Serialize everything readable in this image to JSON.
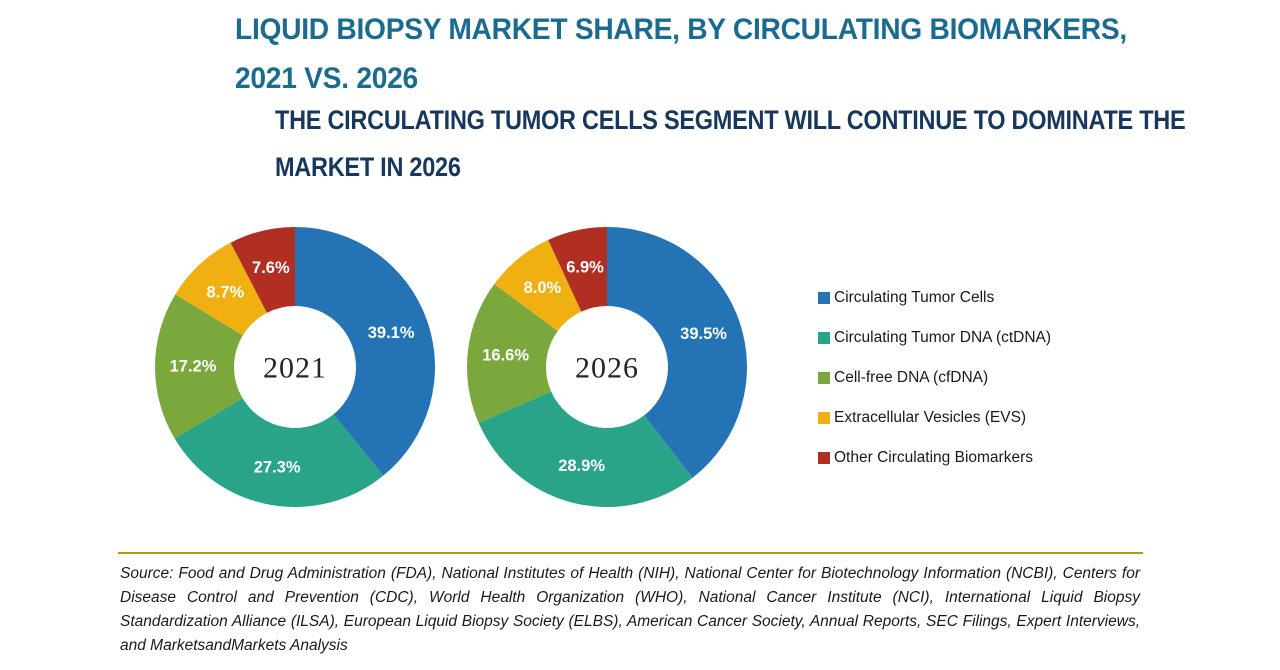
{
  "header": {
    "title_lines": [
      "LIQUID BIOPSY MARKET SHARE, BY CIRCULATING BIOMARKERS,",
      "2021 VS. 2026"
    ],
    "subtitle_lines": [
      "THE CIRCULATING TUMOR CELLS SEGMENT WILL CONTINUE TO DOMINATE THE",
      "MARKET IN 2026"
    ],
    "title_color": "#1b6b8f",
    "subtitle_color": "#17375d"
  },
  "legend": {
    "items": [
      {
        "label": "Circulating Tumor Cells",
        "color": "#2473b5"
      },
      {
        "label": "Circulating Tumor DNA (ctDNA)",
        "color": "#2aa489"
      },
      {
        "label": "Cell-free DNA (cfDNA)",
        "color": "#7aa83d"
      },
      {
        "label": "Extracellular Vesicles (EVS)",
        "color": "#f0b012"
      },
      {
        "label": "Other Circulating Biomarkers",
        "color": "#b12f22"
      }
    ]
  },
  "chart_data": [
    {
      "type": "pie",
      "donut": true,
      "center_label": "2021",
      "categories": [
        "Circulating Tumor Cells",
        "Circulating Tumor DNA (ctDNA)",
        "Cell-free DNA (cfDNA)",
        "Extracellular Vesicles (EVS)",
        "Other Circulating Biomarkers"
      ],
      "values": [
        39.1,
        27.3,
        17.2,
        8.7,
        7.6
      ],
      "labels": [
        "39.1%",
        "27.3%",
        "17.2%",
        "8.7%",
        "7.6%"
      ],
      "colors": [
        "#2473b5",
        "#2aa489",
        "#7aa83d",
        "#f0b012",
        "#b12f22"
      ],
      "start_angle_deg": 0,
      "direction": "clockwise"
    },
    {
      "type": "pie",
      "donut": true,
      "center_label": "2026",
      "categories": [
        "Circulating Tumor Cells",
        "Circulating Tumor DNA (ctDNA)",
        "Cell-free DNA (cfDNA)",
        "Extracellular Vesicles (EVS)",
        "Other Circulating Biomarkers"
      ],
      "values": [
        39.5,
        28.9,
        16.6,
        8.0,
        6.9
      ],
      "labels": [
        "39.5%",
        "28.9%",
        "16.6%",
        "8.0%",
        "6.9%"
      ],
      "colors": [
        "#2473b5",
        "#2aa489",
        "#7aa83d",
        "#f0b012",
        "#b12f22"
      ],
      "start_angle_deg": 0,
      "direction": "clockwise"
    }
  ],
  "divider": {
    "color": "#b6960b"
  },
  "source": {
    "text": "Source: Food and Drug Administration (FDA), National Institutes of Health (NIH), National Center for Biotechnology Information (NCBI), Centers for Disease Control and Prevention (CDC), World Health Organization (WHO), National Cancer Institute (NCI), International Liquid Biopsy Standardization Alliance (ILSA), European Liquid Biopsy Society (ELBS), American Cancer Society, Annual Reports, SEC Filings, Expert Interviews, and MarketsandMarkets Analysis"
  }
}
